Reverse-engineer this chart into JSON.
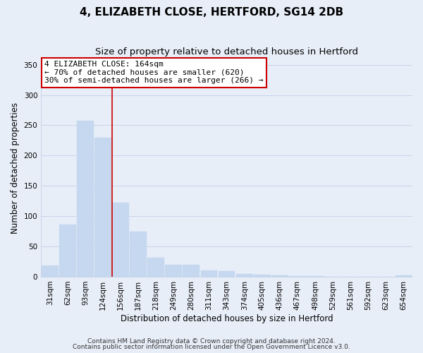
{
  "title": "4, ELIZABETH CLOSE, HERTFORD, SG14 2DB",
  "subtitle": "Size of property relative to detached houses in Hertford",
  "xlabel": "Distribution of detached houses by size in Hertford",
  "ylabel": "Number of detached properties",
  "categories": [
    "31sqm",
    "62sqm",
    "93sqm",
    "124sqm",
    "156sqm",
    "187sqm",
    "218sqm",
    "249sqm",
    "280sqm",
    "311sqm",
    "343sqm",
    "374sqm",
    "405sqm",
    "436sqm",
    "467sqm",
    "498sqm",
    "529sqm",
    "561sqm",
    "592sqm",
    "623sqm",
    "654sqm"
  ],
  "values": [
    19,
    86,
    257,
    230,
    122,
    75,
    32,
    20,
    20,
    11,
    9,
    5,
    4,
    2,
    1,
    1,
    0,
    0,
    0,
    0,
    2
  ],
  "bar_color": "#c5d8ef",
  "bar_edge_color": "#a8c4e0",
  "vline_x_index": 4,
  "vline_color": "#cc0000",
  "annotation_title": "4 ELIZABETH CLOSE: 164sqm",
  "annotation_line1": "← 70% of detached houses are smaller (620)",
  "annotation_line2": "30% of semi-detached houses are larger (266) →",
  "annotation_box_color": "#ffffff",
  "annotation_box_edge": "#cc0000",
  "ylim": [
    0,
    360
  ],
  "yticks": [
    0,
    50,
    100,
    150,
    200,
    250,
    300,
    350
  ],
  "footer1": "Contains HM Land Registry data © Crown copyright and database right 2024.",
  "footer2": "Contains public sector information licensed under the Open Government Licence v3.0.",
  "bg_color": "#e8eef8",
  "plot_bg_color": "#e8eef8",
  "grid_color": "#c8d4e8",
  "title_fontsize": 11,
  "subtitle_fontsize": 9.5,
  "axis_label_fontsize": 8.5,
  "tick_fontsize": 7.5,
  "annotation_fontsize": 8,
  "footer_fontsize": 6.5
}
